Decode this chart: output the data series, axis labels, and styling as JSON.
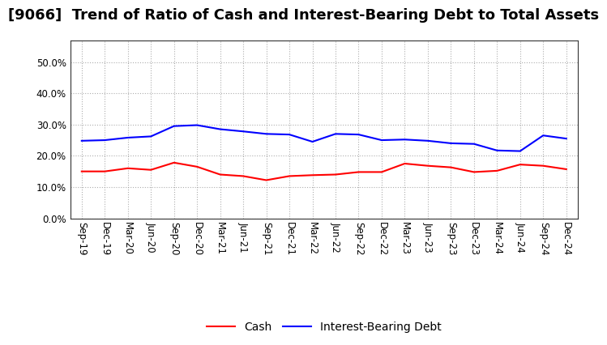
{
  "title": "[9066]  Trend of Ratio of Cash and Interest-Bearing Debt to Total Assets",
  "x_labels": [
    "Sep-19",
    "Dec-19",
    "Mar-20",
    "Jun-20",
    "Sep-20",
    "Dec-20",
    "Mar-21",
    "Jun-21",
    "Sep-21",
    "Dec-21",
    "Mar-22",
    "Jun-22",
    "Sep-22",
    "Dec-22",
    "Mar-23",
    "Jun-23",
    "Sep-23",
    "Dec-23",
    "Mar-24",
    "Jun-24",
    "Sep-24",
    "Dec-24"
  ],
  "cash": [
    0.15,
    0.15,
    0.16,
    0.155,
    0.178,
    0.165,
    0.14,
    0.135,
    0.122,
    0.135,
    0.138,
    0.14,
    0.148,
    0.148,
    0.175,
    0.168,
    0.163,
    0.148,
    0.152,
    0.172,
    0.168,
    0.157
  ],
  "ibd": [
    0.248,
    0.25,
    0.258,
    0.262,
    0.295,
    0.298,
    0.285,
    0.278,
    0.27,
    0.268,
    0.245,
    0.27,
    0.268,
    0.25,
    0.252,
    0.248,
    0.24,
    0.238,
    0.217,
    0.215,
    0.265,
    0.255
  ],
  "cash_color": "#ff0000",
  "ibd_color": "#0000ff",
  "ylim": [
    0.0,
    0.57
  ],
  "yticks": [
    0.0,
    0.1,
    0.2,
    0.3,
    0.4,
    0.5
  ],
  "background_color": "#ffffff",
  "grid_color": "#999999",
  "title_fontsize": 13,
  "tick_fontsize": 8.5,
  "legend_labels": [
    "Cash",
    "Interest-Bearing Debt"
  ]
}
